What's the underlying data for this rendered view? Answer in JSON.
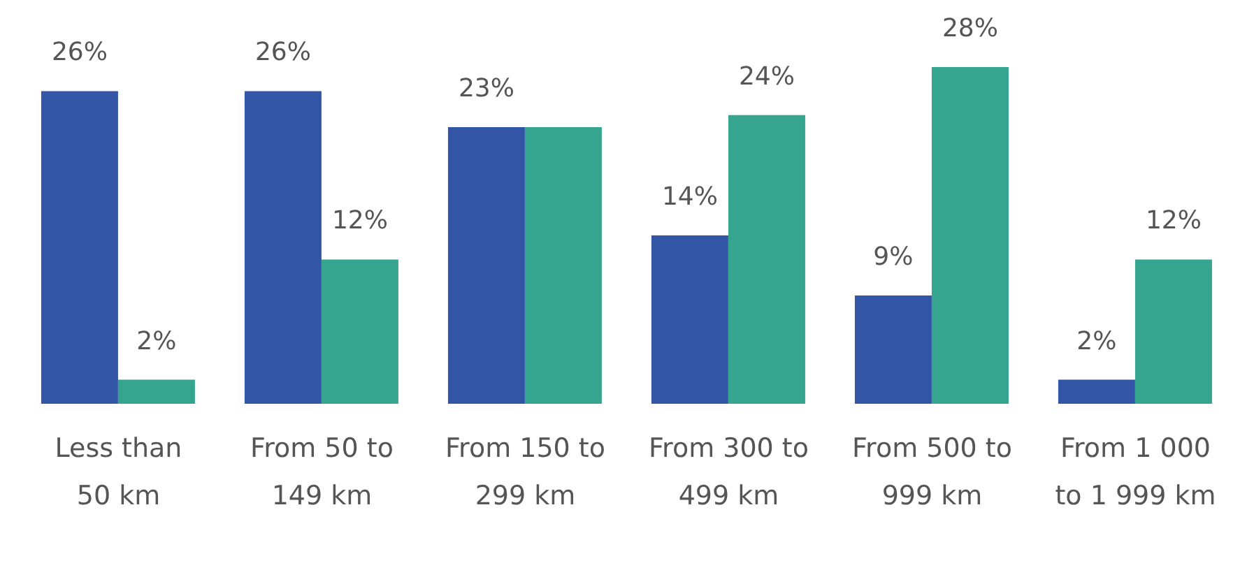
{
  "chart_data": {
    "type": "bar",
    "categories": [
      "Less than 50 km",
      "From 50 to 149 km",
      "From 150 to 299 km",
      "From 300 to 499 km",
      "From 500 to 999 km",
      "From 1 000 to 1 999 km"
    ],
    "series": [
      {
        "color": "#3355a5",
        "values": [
          26,
          26,
          23,
          14,
          9,
          2
        ],
        "value_labels": [
          "26%",
          "26%",
          "23%",
          "14%",
          "9%",
          "2%"
        ]
      },
      {
        "color": "#36a58f",
        "values": [
          2,
          12,
          23,
          24,
          28,
          12
        ],
        "value_labels": [
          "2%",
          "12%",
          null,
          "24%",
          "28%",
          "12%"
        ]
      }
    ],
    "grid": false,
    "legend": false
  }
}
